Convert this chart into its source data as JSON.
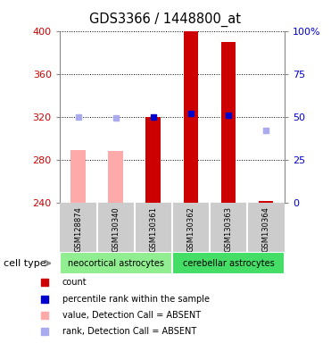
{
  "title": "GDS3366 / 1448800_at",
  "samples": [
    "GSM128874",
    "GSM130340",
    "GSM130361",
    "GSM130362",
    "GSM130363",
    "GSM130364"
  ],
  "cell_types": [
    {
      "label": "neocortical astrocytes",
      "color": "#90ee90",
      "samples": [
        0,
        1,
        2
      ]
    },
    {
      "label": "cerebellar astrocytes",
      "color": "#44dd66",
      "samples": [
        3,
        4,
        5
      ]
    }
  ],
  "ylim_left": [
    240,
    400
  ],
  "ylim_right": [
    0,
    100
  ],
  "yticks_left": [
    240,
    280,
    320,
    360,
    400
  ],
  "yticks_right": [
    0,
    25,
    50,
    75,
    100
  ],
  "yticklabels_right": [
    "0",
    "25",
    "50",
    "75",
    "100%"
  ],
  "bars": [
    {
      "sample_idx": 0,
      "value": 289,
      "color": "#ffaaaa",
      "type": "absent_value"
    },
    {
      "sample_idx": 1,
      "value": 288,
      "color": "#ffaaaa",
      "type": "absent_value"
    },
    {
      "sample_idx": 2,
      "value": 320,
      "color": "#cc0000",
      "type": "present_value"
    },
    {
      "sample_idx": 3,
      "value": 400,
      "color": "#cc0000",
      "type": "present_value"
    },
    {
      "sample_idx": 4,
      "value": 390,
      "color": "#cc0000",
      "type": "present_value"
    },
    {
      "sample_idx": 5,
      "value": 241,
      "color": "#cc0000",
      "type": "present_value"
    }
  ],
  "rank_dots": [
    {
      "sample_idx": 0,
      "rank_value": 320,
      "color": "#aaaaee",
      "type": "absent_rank"
    },
    {
      "sample_idx": 1,
      "rank_value": 319,
      "color": "#aaaaee",
      "type": "absent_rank"
    },
    {
      "sample_idx": 2,
      "rank_value": 320,
      "color": "#0000cc",
      "type": "present_rank"
    },
    {
      "sample_idx": 3,
      "rank_value": 323,
      "color": "#0000cc",
      "type": "present_rank"
    },
    {
      "sample_idx": 4,
      "rank_value": 321,
      "color": "#0000cc",
      "type": "present_rank"
    },
    {
      "sample_idx": 5,
      "rank_value": 307,
      "color": "#aaaaee",
      "type": "absent_rank"
    }
  ],
  "bar_width": 0.4,
  "baseline": 240,
  "legend_items": [
    {
      "color": "#cc0000",
      "label": "count"
    },
    {
      "color": "#0000cc",
      "label": "percentile rank within the sample"
    },
    {
      "color": "#ffaaaa",
      "label": "value, Detection Call = ABSENT"
    },
    {
      "color": "#aaaaee",
      "label": "rank, Detection Call = ABSENT"
    }
  ],
  "left_axis_color": "#cc0000",
  "right_axis_color": "#0000cc",
  "label_area_color": "#cccccc",
  "cell_type_label": "cell type"
}
